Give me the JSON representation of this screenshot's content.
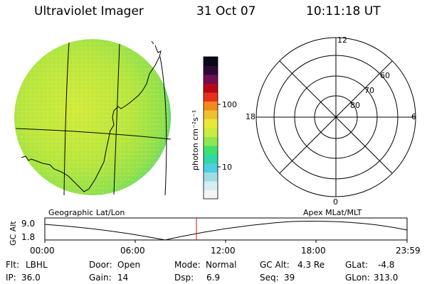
{
  "header": {
    "title": "Ultraviolet Imager",
    "date": "31 Oct 07",
    "time": "10:11:18 UT"
  },
  "colorbar": {
    "unit_label": "photon cm⁻²s⁻¹",
    "ticks": [
      {
        "value": 100,
        "label": "100"
      },
      {
        "value": 10,
        "label": "10"
      }
    ],
    "colors": [
      "#f4f4f4",
      "#d6eef2",
      "#a0dce6",
      "#4ed0e0",
      "#30d8a8",
      "#40e070",
      "#90e850",
      "#c8ec40",
      "#e8e838",
      "#f0c030",
      "#f08a20",
      "#e83018",
      "#b80818",
      "#701050",
      "#300838",
      "#080818"
    ]
  },
  "geo_panel": {
    "label": "Geographic Lat/Lon"
  },
  "polar_panel": {
    "label": "Apex MLat/MLT",
    "mlt_labels": {
      "top": "12",
      "left": "18",
      "right": "6",
      "bottom": "0"
    },
    "lat_labels": [
      "60",
      "70",
      "80"
    ]
  },
  "altitude_plot": {
    "ylabel": "GC Alt",
    "y_ticks": [
      "9.0",
      "1.8"
    ],
    "x_ticks": [
      "00:00",
      "06:00",
      "12:00",
      "18:00",
      "23:59"
    ],
    "current_time_marker": "10:11"
  },
  "status": {
    "flt": {
      "label": "Flt:",
      "value": "LBHL"
    },
    "ip": {
      "label": "IP:",
      "value": "36.0"
    },
    "door": {
      "label": "Door:",
      "value": "Open"
    },
    "gain": {
      "label": "Gain:",
      "value": "14"
    },
    "mode": {
      "label": "Mode:",
      "value": "Normal"
    },
    "dsp": {
      "label": "Dsp:",
      "value": "6.9"
    },
    "gcalt": {
      "label": "GC Alt:",
      "value": "4.3 Re"
    },
    "seq": {
      "label": "Seq:",
      "value": "39"
    },
    "glat": {
      "label": "GLat:",
      "value": "-4.8"
    },
    "glon": {
      "label": "GLon:",
      "value": "313.0"
    }
  }
}
